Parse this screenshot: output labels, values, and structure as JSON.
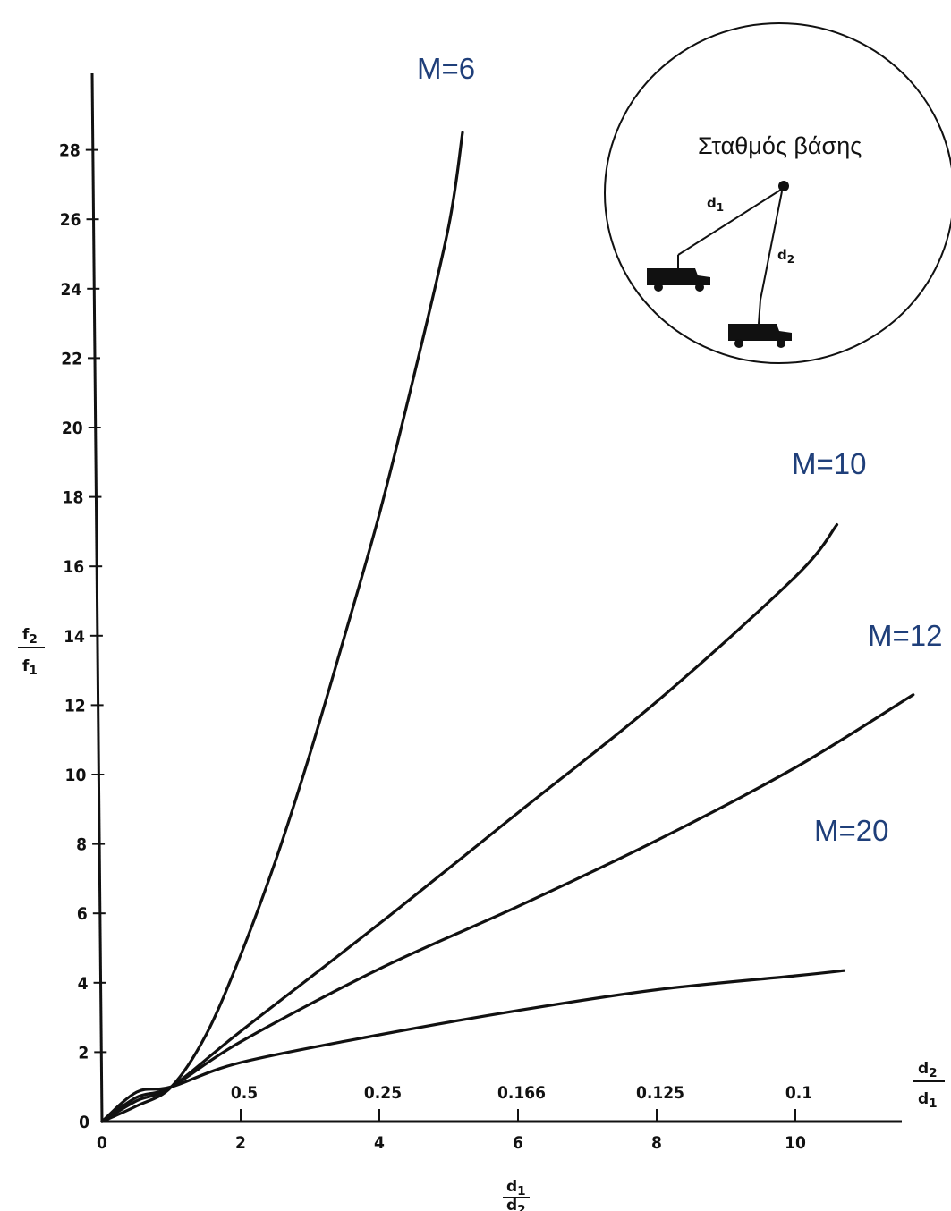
{
  "chart_data": {
    "type": "line",
    "xlabel": {
      "numerator": "d1",
      "denominator": "d2"
    },
    "ylabel": {
      "numerator": "f2",
      "denominator": "f1"
    },
    "x2label": {
      "numerator": "d2",
      "denominator": "d1"
    },
    "xlim": [
      0,
      11.8
    ],
    "ylim": [
      0,
      29
    ],
    "x_ticks": [
      {
        "value": 0,
        "label": "0"
      },
      {
        "value": 2,
        "label": "2"
      },
      {
        "value": 4,
        "label": "4"
      },
      {
        "value": 6,
        "label": "6"
      },
      {
        "value": 8,
        "label": "8"
      },
      {
        "value": 10,
        "label": "10"
      }
    ],
    "x2_ticks": [
      {
        "value": 2,
        "label": "0.5"
      },
      {
        "value": 4,
        "label": "0.25"
      },
      {
        "value": 6,
        "label": "0.166"
      },
      {
        "value": 8,
        "label": "0.125"
      },
      {
        "value": 10,
        "label": "0.1"
      }
    ],
    "y_ticks": [
      {
        "value": 0,
        "label": "0"
      },
      {
        "value": 2,
        "label": "2"
      },
      {
        "value": 4,
        "label": "4"
      },
      {
        "value": 6,
        "label": "6"
      },
      {
        "value": 8,
        "label": "8"
      },
      {
        "value": 10,
        "label": "10"
      },
      {
        "value": 12,
        "label": "12"
      },
      {
        "value": 14,
        "label": "14"
      },
      {
        "value": 16,
        "label": "16"
      },
      {
        "value": 18,
        "label": "18"
      },
      {
        "value": 20,
        "label": "20"
      },
      {
        "value": 22,
        "label": "22"
      },
      {
        "value": 24,
        "label": "24"
      },
      {
        "value": 26,
        "label": "26"
      },
      {
        "value": 28,
        "label": "28"
      }
    ],
    "series": [
      {
        "name": "M=6",
        "x": [
          0,
          0.5,
          1,
          1.5,
          2,
          2.5,
          3,
          3.5,
          4,
          4.5,
          5,
          5.2
        ],
        "y": [
          0,
          0.45,
          1,
          2.5,
          4.8,
          7.5,
          10.6,
          14,
          17.5,
          21.5,
          25.8,
          28.5
        ]
      },
      {
        "name": "M=10",
        "x": [
          0,
          0.5,
          1,
          2,
          4,
          6,
          8,
          10,
          10.6
        ],
        "y": [
          0,
          0.6,
          1,
          2.6,
          5.7,
          8.9,
          12.1,
          15.7,
          17.2
        ]
      },
      {
        "name": "M=12",
        "x": [
          0,
          0.5,
          1,
          2,
          4,
          6,
          8,
          10,
          11.7
        ],
        "y": [
          0,
          0.7,
          1,
          2.3,
          4.4,
          6.2,
          8.1,
          10.2,
          12.3
        ]
      },
      {
        "name": "M=20",
        "x": [
          0,
          0.5,
          1,
          2,
          4,
          6,
          8,
          10,
          10.7
        ],
        "y": [
          0,
          0.85,
          1,
          1.7,
          2.5,
          3.2,
          3.8,
          4.2,
          4.35
        ]
      }
    ],
    "inset": {
      "title": "Σταθμός βάσης",
      "distance_1": "d1",
      "distance_2": "d2"
    },
    "grid": false,
    "legend": "labels at line ends"
  }
}
